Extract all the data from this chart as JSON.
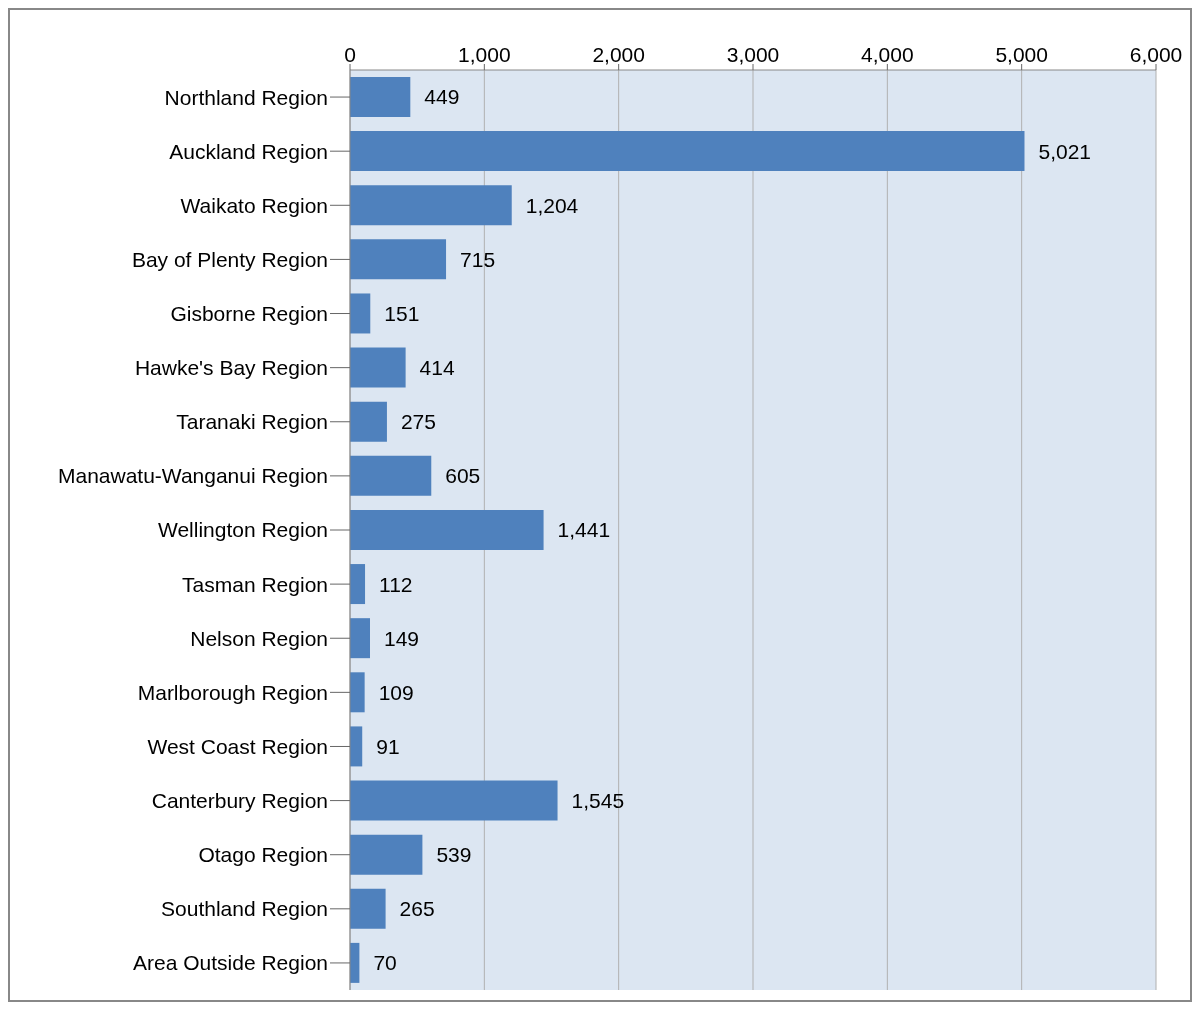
{
  "chart_data": {
    "type": "bar",
    "orientation": "horizontal",
    "categories": [
      "Northland Region",
      "Auckland Region",
      "Waikato Region",
      "Bay of Plenty Region",
      "Gisborne Region",
      "Hawke's Bay Region",
      "Taranaki Region",
      "Manawatu-Wanganui Region",
      "Wellington Region",
      "Tasman Region",
      "Nelson Region",
      "Marlborough Region",
      "West Coast Region",
      "Canterbury Region",
      "Otago Region",
      "Southland Region",
      "Area Outside Region"
    ],
    "values": [
      449,
      5021,
      1204,
      715,
      151,
      414,
      275,
      605,
      1441,
      112,
      149,
      109,
      91,
      1545,
      539,
      265,
      70
    ],
    "value_labels": [
      "449",
      "5,021",
      "1,204",
      "715",
      "151",
      "414",
      "275",
      "605",
      "1,441",
      "112",
      "149",
      "109",
      "91",
      "1,545",
      "539",
      "265",
      "70"
    ],
    "color": "#4f81bd",
    "xlim": [
      0,
      6000
    ],
    "xticks": [
      0,
      {
        "value": 1000,
        "label": "1,000"
      },
      {
        "value": 2000,
        "label": "2,000"
      },
      {
        "value": 3000,
        "label": "3,000"
      },
      {
        "value": 4000,
        "label": "4,000"
      },
      {
        "value": 5000,
        "label": "5,000"
      },
      {
        "value": 6000,
        "label": "6,000"
      }
    ],
    "grid": "x",
    "legend": false
  }
}
